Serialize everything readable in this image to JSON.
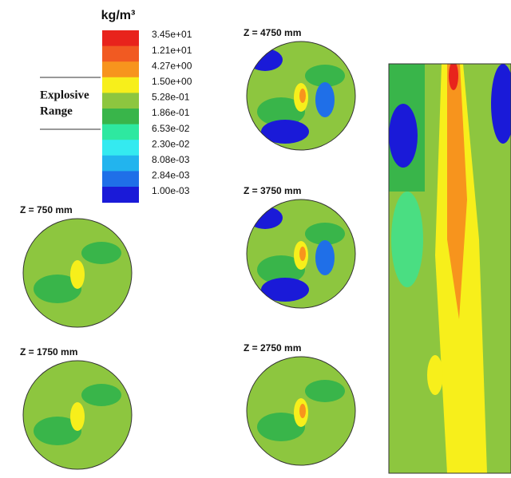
{
  "legend": {
    "unit": "kg/m³",
    "range_label": [
      "Explosive",
      "Range"
    ],
    "colors": [
      "#e8231c",
      "#f15a22",
      "#f7941d",
      "#f7ef1b",
      "#8dc63f",
      "#39b54a",
      "#2ee8a0",
      "#34eaf0",
      "#22b4ee",
      "#1f6fe8",
      "#1a1ad8"
    ],
    "labels": [
      "3.45e+01",
      "1.21e+01",
      "4.27e+00",
      "1.50e+00",
      "5.28e-01",
      "1.86e-01",
      "6.53e-02",
      "2.30e-02",
      "8.08e-03",
      "2.84e-03",
      "1.00e-03"
    ]
  },
  "sections": [
    "Z = 4750 mm",
    "Z = 3750 mm",
    "Z = 2750 mm",
    "Z = 750 mm",
    "Z = 1750 mm"
  ]
}
